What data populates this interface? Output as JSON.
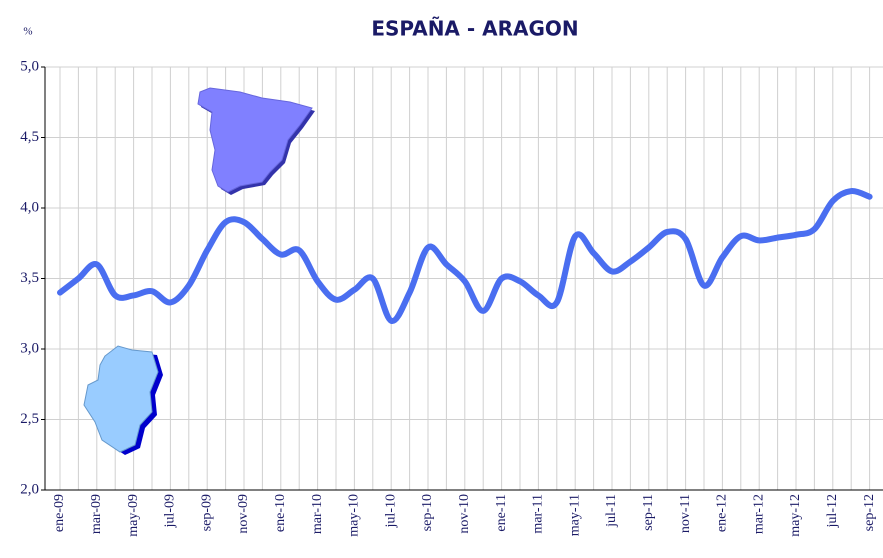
{
  "chart_data": {
    "type": "line",
    "title": "ESPAÑA - ARAGON",
    "y_label": "%",
    "categories": [
      "ene-09",
      null,
      "mar-09",
      null,
      "may-09",
      null,
      "jul-09",
      null,
      "sep-09",
      null,
      "nov-09",
      null,
      "ene-10",
      null,
      "mar-10",
      null,
      "may-10",
      null,
      "jul-10",
      null,
      "sep-10",
      null,
      "nov-10",
      null,
      "ene-11",
      null,
      "mar-11",
      null,
      "may-11",
      null,
      "jul-11",
      null,
      "sep-11",
      null,
      "nov-11",
      null,
      "ene-12",
      null,
      "mar-12",
      null,
      "may-12",
      null,
      "jul-12",
      null,
      "sep-12"
    ],
    "series": [
      {
        "name": "ESPAÑA - ARAGON",
        "color": "#4a6ef0",
        "values": [
          3.4,
          3.5,
          3.6,
          3.38,
          3.38,
          3.41,
          3.33,
          3.45,
          3.7,
          3.9,
          3.9,
          3.78,
          3.67,
          3.7,
          3.48,
          3.35,
          3.42,
          3.5,
          3.2,
          3.4,
          3.72,
          3.6,
          3.48,
          3.27,
          3.5,
          3.48,
          3.38,
          3.33,
          3.8,
          3.68,
          3.55,
          3.62,
          3.72,
          3.83,
          3.78,
          3.45,
          3.65,
          3.8,
          3.77,
          3.79,
          3.81,
          3.85,
          4.05,
          4.12,
          4.08
        ]
      }
    ],
    "ylim": [
      2,
      5
    ],
    "yticks": [
      {
        "value": 2,
        "label": "2,0"
      },
      {
        "value": 2.5,
        "label": "2,5"
      },
      {
        "value": 3,
        "label": "3,0"
      },
      {
        "value": 3.5,
        "label": "3,5"
      },
      {
        "value": 4,
        "label": "4,0"
      },
      {
        "value": 4.5,
        "label": "4,5"
      },
      {
        "value": 5,
        "label": "5,0"
      }
    ],
    "grid": true
  }
}
